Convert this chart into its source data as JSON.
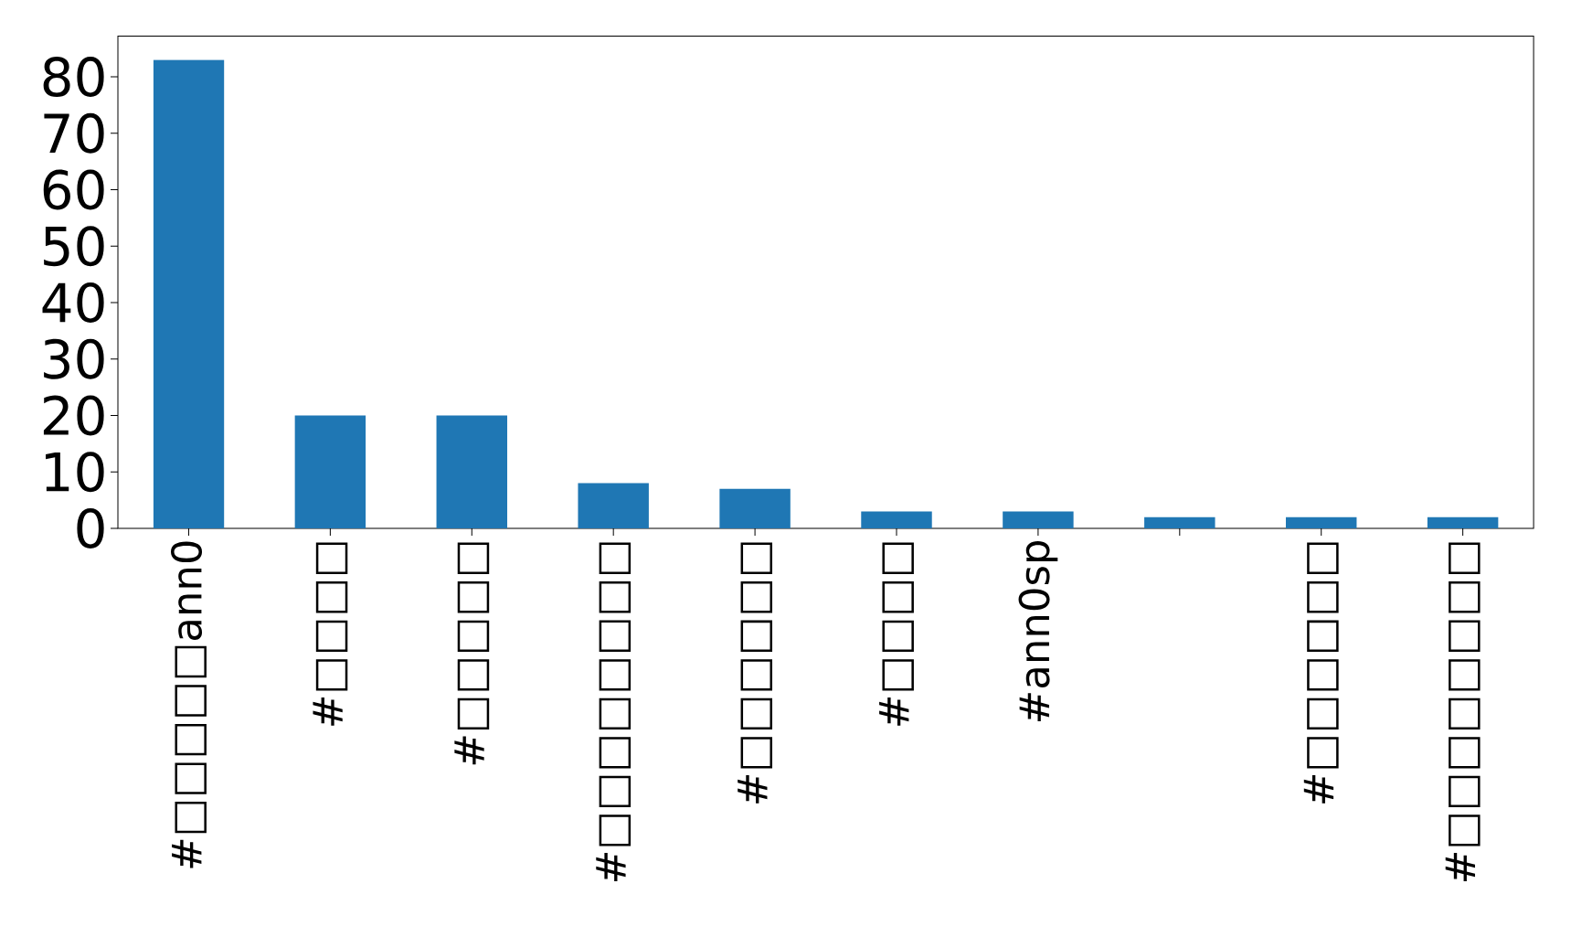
{
  "chart_data": {
    "type": "bar",
    "categories": [
      "#□□□□□ann0",
      "#□□□□",
      "#□□□□□",
      "#□□□□□□□□",
      "#□□□□□□",
      "#□□□□",
      "#ann0sp",
      null,
      "#□□□□□□",
      "#□□□□□□□□"
    ],
    "values": [
      83,
      20,
      20,
      8,
      7,
      3,
      3,
      2,
      2,
      2
    ],
    "color": "#1f77b4",
    "ylim": [
      0,
      87.2
    ],
    "yticks": [
      0,
      10,
      20,
      30,
      40,
      50,
      60,
      70,
      80
    ],
    "grid": false
  }
}
